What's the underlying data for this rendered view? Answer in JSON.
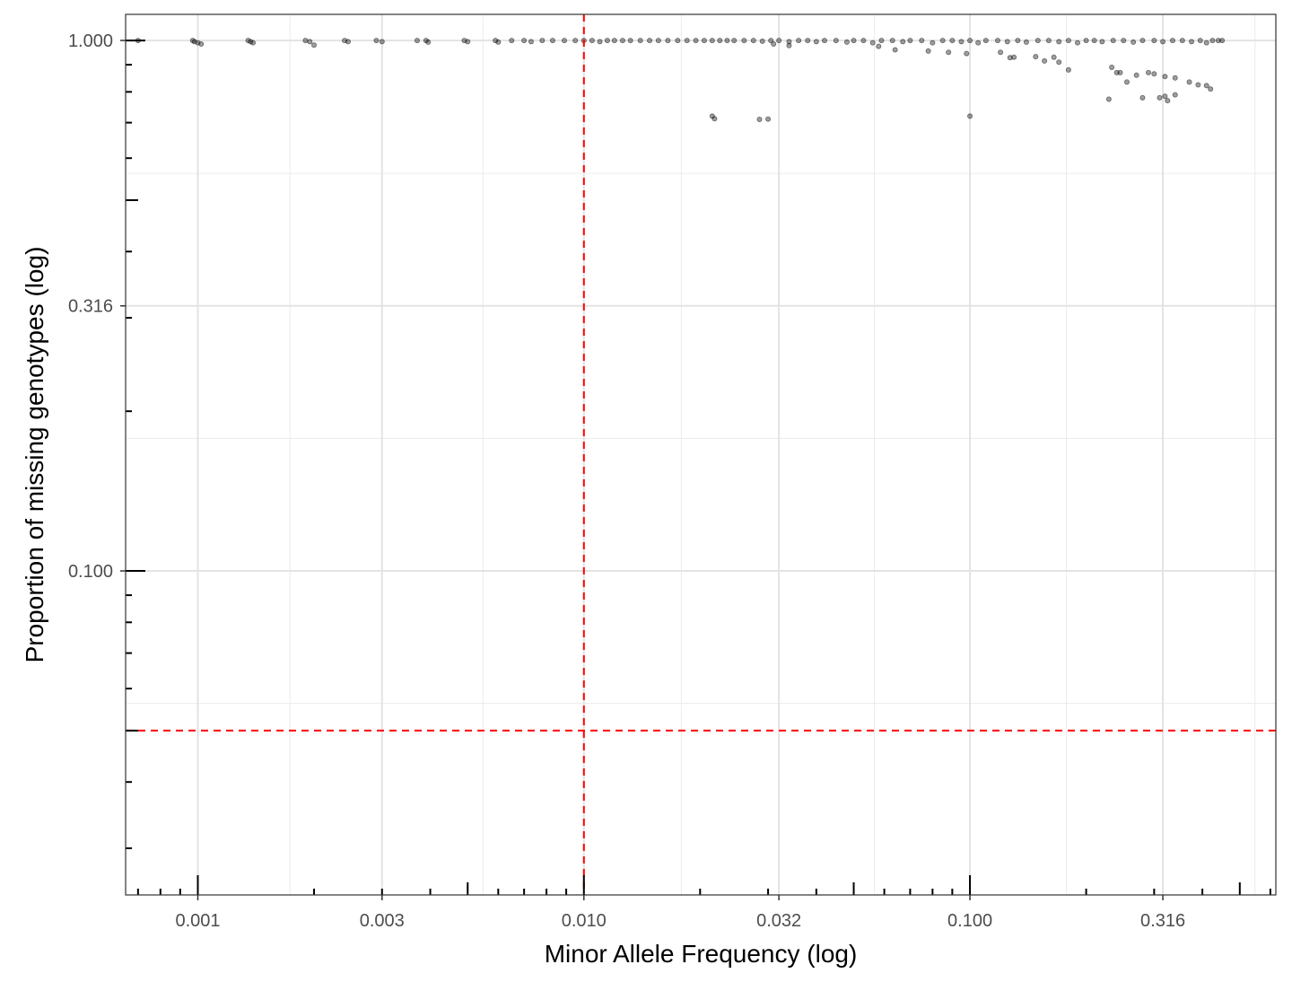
{
  "chart_data": {
    "type": "scatter",
    "title": "",
    "xlabel": "Minor Allele Frequency (log)",
    "ylabel": "Proportion of missing genotypes (log)",
    "x_scale": "log10",
    "y_scale": "log10",
    "xlim": [
      0.00065,
      0.62
    ],
    "ylim": [
      0.0245,
      1.12
    ],
    "x_ticks": [
      0.001,
      0.003,
      0.01,
      0.032,
      0.1,
      0.316
    ],
    "x_tick_labels": [
      "0.001",
      "0.003",
      "0.010",
      "0.032",
      "0.100",
      "0.316"
    ],
    "y_ticks": [
      0.1,
      0.316,
      1.0
    ],
    "y_tick_labels": [
      "0.100",
      "0.316",
      "1.000"
    ],
    "grid": true,
    "legend": "none",
    "reference_lines": [
      {
        "orientation": "vertical",
        "value": 0.01,
        "color": "#ff0000",
        "style": "dashed"
      },
      {
        "orientation": "horizontal",
        "value": 0.05,
        "color": "#ff0000",
        "style": "dashed"
      }
    ],
    "marginal_rugs": true,
    "point_color": "#000000",
    "series": [
      {
        "name": "",
        "points": [
          [
            0.0007,
            1.0
          ],
          [
            0.00097,
            1.0
          ],
          [
            0.00098,
            0.995
          ],
          [
            0.001,
            0.99
          ],
          [
            0.00102,
            0.985
          ],
          [
            0.00135,
            1.0
          ],
          [
            0.00137,
            0.995
          ],
          [
            0.00139,
            0.99
          ],
          [
            0.0019,
            1.0
          ],
          [
            0.00195,
            0.995
          ],
          [
            0.002,
            0.98
          ],
          [
            0.0024,
            1.0
          ],
          [
            0.00245,
            0.995
          ],
          [
            0.0029,
            1.0
          ],
          [
            0.003,
            0.995
          ],
          [
            0.0037,
            1.0
          ],
          [
            0.0039,
            1.0
          ],
          [
            0.00395,
            0.993
          ],
          [
            0.0049,
            1.0
          ],
          [
            0.005,
            0.995
          ],
          [
            0.0059,
            1.0
          ],
          [
            0.006,
            0.993
          ],
          [
            0.0065,
            1.0
          ],
          [
            0.007,
            1.0
          ],
          [
            0.0073,
            0.995
          ],
          [
            0.0078,
            1.0
          ],
          [
            0.0083,
            1.0
          ],
          [
            0.0089,
            1.0
          ],
          [
            0.0095,
            1.0
          ],
          [
            0.01,
            1.0
          ],
          [
            0.0105,
            1.0
          ],
          [
            0.011,
            0.995
          ],
          [
            0.0115,
            1.0
          ],
          [
            0.012,
            1.0
          ],
          [
            0.0126,
            1.0
          ],
          [
            0.0132,
            1.0
          ],
          [
            0.014,
            1.0
          ],
          [
            0.0148,
            1.0
          ],
          [
            0.0156,
            1.0
          ],
          [
            0.0165,
            1.0
          ],
          [
            0.0175,
            1.0
          ],
          [
            0.0185,
            1.0
          ],
          [
            0.0195,
            1.0
          ],
          [
            0.0205,
            1.0
          ],
          [
            0.0215,
            1.0
          ],
          [
            0.0225,
            1.0
          ],
          [
            0.0235,
            1.0
          ],
          [
            0.0245,
            1.0
          ],
          [
            0.026,
            1.0
          ],
          [
            0.0275,
            1.0
          ],
          [
            0.029,
            0.997
          ],
          [
            0.0305,
            1.0
          ],
          [
            0.032,
            1.0
          ],
          [
            0.034,
            0.995
          ],
          [
            0.036,
            1.0
          ],
          [
            0.038,
            1.0
          ],
          [
            0.04,
            0.995
          ],
          [
            0.042,
            1.0
          ],
          [
            0.045,
            1.0
          ],
          [
            0.048,
            0.993
          ],
          [
            0.05,
            1.0
          ],
          [
            0.053,
            1.0
          ],
          [
            0.056,
            0.99
          ],
          [
            0.059,
            1.0
          ],
          [
            0.063,
            1.0
          ],
          [
            0.067,
            0.995
          ],
          [
            0.07,
            1.0
          ],
          [
            0.075,
            1.0
          ],
          [
            0.08,
            0.99
          ],
          [
            0.085,
            1.0
          ],
          [
            0.09,
            1.0
          ],
          [
            0.095,
            0.995
          ],
          [
            0.1,
            1.0
          ],
          [
            0.105,
            0.99
          ],
          [
            0.11,
            1.0
          ],
          [
            0.118,
            1.0
          ],
          [
            0.125,
            0.995
          ],
          [
            0.133,
            1.0
          ],
          [
            0.14,
            0.993
          ],
          [
            0.15,
            1.0
          ],
          [
            0.16,
            1.0
          ],
          [
            0.17,
            0.995
          ],
          [
            0.18,
            1.0
          ],
          [
            0.19,
            0.99
          ],
          [
            0.2,
            1.0
          ],
          [
            0.21,
            1.0
          ],
          [
            0.22,
            0.995
          ],
          [
            0.235,
            1.0
          ],
          [
            0.25,
            1.0
          ],
          [
            0.265,
            0.993
          ],
          [
            0.28,
            1.0
          ],
          [
            0.3,
            1.0
          ],
          [
            0.316,
            0.995
          ],
          [
            0.335,
            1.0
          ],
          [
            0.355,
            1.0
          ],
          [
            0.375,
            0.995
          ],
          [
            0.395,
            1.0
          ],
          [
            0.41,
            0.99
          ],
          [
            0.425,
            1.0
          ],
          [
            0.44,
            1.0
          ],
          [
            0.45,
            1.0
          ],
          [
            0.031,
            0.985
          ],
          [
            0.034,
            0.978
          ],
          [
            0.058,
            0.975
          ],
          [
            0.064,
            0.96
          ],
          [
            0.078,
            0.955
          ],
          [
            0.088,
            0.95
          ],
          [
            0.098,
            0.945
          ],
          [
            0.12,
            0.95
          ],
          [
            0.13,
            0.93
          ],
          [
            0.127,
            0.928
          ],
          [
            0.148,
            0.932
          ],
          [
            0.156,
            0.915
          ],
          [
            0.165,
            0.93
          ],
          [
            0.17,
            0.91
          ],
          [
            0.18,
            0.88
          ],
          [
            0.233,
            0.89
          ],
          [
            0.245,
            0.87
          ],
          [
            0.24,
            0.87
          ],
          [
            0.27,
            0.86
          ],
          [
            0.29,
            0.87
          ],
          [
            0.3,
            0.865
          ],
          [
            0.32,
            0.855
          ],
          [
            0.34,
            0.85
          ],
          [
            0.37,
            0.835
          ],
          [
            0.39,
            0.825
          ],
          [
            0.41,
            0.822
          ],
          [
            0.42,
            0.81
          ],
          [
            0.255,
            0.835
          ],
          [
            0.34,
            0.79
          ],
          [
            0.31,
            0.78
          ],
          [
            0.28,
            0.78
          ],
          [
            0.325,
            0.77
          ],
          [
            0.32,
            0.785
          ],
          [
            0.0215,
            0.72
          ],
          [
            0.0218,
            0.712
          ],
          [
            0.0285,
            0.71
          ],
          [
            0.03,
            0.711
          ],
          [
            0.1,
            0.72
          ],
          [
            0.229,
            0.775
          ]
        ]
      }
    ]
  }
}
